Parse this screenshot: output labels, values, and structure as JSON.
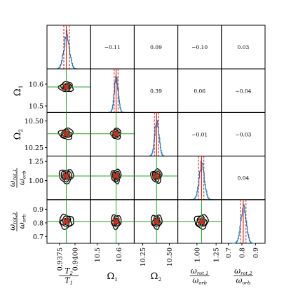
{
  "chart_data": {
    "type": "corner",
    "parameters": [
      {
        "name": "T2/T1",
        "label_num": "T",
        "label_num_sub": "2",
        "label_den": "T",
        "label_den_sub": "1",
        "ticks": [
          "0.9375",
          "0.9400"
        ],
        "tick_values": [
          0.9375,
          0.94
        ],
        "range": [
          0.9355,
          0.9425
        ],
        "median": 0.9386,
        "q16": 0.9382,
        "q84": 0.9391
      },
      {
        "name": "Omega1",
        "label": "Ω",
        "label_sub": "1",
        "ticks": [
          "10.5",
          "10.6"
        ],
        "tick_values": [
          10.5,
          10.6
        ],
        "range": [
          10.47,
          10.67
        ],
        "median": 10.587,
        "q16": 10.578,
        "q84": 10.596
      },
      {
        "name": "Omega2",
        "label": "Ω",
        "label_sub": "2",
        "ticks": [
          "10.25",
          "10.50"
        ],
        "tick_values": [
          10.25,
          10.5
        ],
        "range": [
          10.17,
          10.58
        ],
        "median": 10.38,
        "q16": 10.36,
        "q84": 10.4
      },
      {
        "name": "omega_rot1/omega_orb",
        "label_num": "ω",
        "label_num_sub": "rot,1",
        "label_den": "ω",
        "label_den_sub": "orb",
        "ticks": [
          "1.00",
          "1.25"
        ],
        "tick_values": [
          1.0,
          1.25
        ],
        "range": [
          0.75,
          1.32
        ],
        "median": 1.06,
        "q16": 1.02,
        "q84": 1.09
      },
      {
        "name": "omega_rot2/omega_orb",
        "label_num": "ω",
        "label_num_sub": "rot,2",
        "label_den": "ω",
        "label_den_sub": "orb",
        "ticks": [
          "0.7",
          "0.8",
          "0.9"
        ],
        "tick_values": [
          0.7,
          0.8,
          0.9
        ],
        "range": [
          0.65,
          0.97
        ],
        "median": 0.81,
        "q16": 0.79,
        "q84": 0.83
      }
    ],
    "correlations": [
      {
        "row": 0,
        "col": 1,
        "value": "−0.11"
      },
      {
        "row": 0,
        "col": 2,
        "value": "0.09"
      },
      {
        "row": 0,
        "col": 3,
        "value": "−0.10"
      },
      {
        "row": 0,
        "col": 4,
        "value": "0.03"
      },
      {
        "row": 1,
        "col": 2,
        "value": "0.39"
      },
      {
        "row": 1,
        "col": 3,
        "value": "0.06"
      },
      {
        "row": 1,
        "col": 4,
        "value": "−0.04"
      },
      {
        "row": 2,
        "col": 3,
        "value": "−0.01"
      },
      {
        "row": 2,
        "col": 4,
        "value": "−0.03"
      },
      {
        "row": 3,
        "col": 4,
        "value": "0.04"
      }
    ],
    "colors": {
      "histogram": "#1f77b4",
      "median_line": "#d62728",
      "truth_lines": "#2ca02c",
      "truth_marker": "#d62728",
      "contours": "#000000"
    }
  }
}
